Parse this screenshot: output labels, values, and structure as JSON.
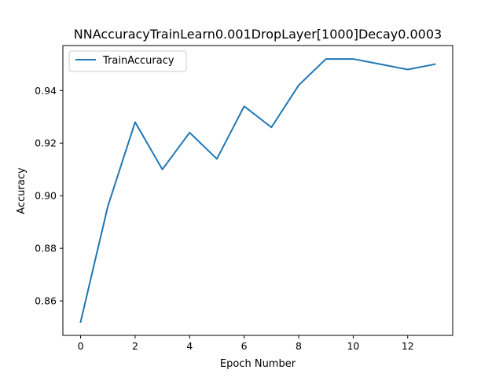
{
  "chart_data": {
    "type": "line",
    "title": "NNAccuracyTrainLearn0.001DropLayer[1000]Decay0.0003",
    "xlabel": "Epoch Number",
    "ylabel": "Accuracy",
    "xlim": [
      -0.65,
      13.65
    ],
    "ylim": [
      0.8469,
      0.9571
    ],
    "xticks": [
      0,
      2,
      4,
      6,
      8,
      10,
      12
    ],
    "yticks": [
      0.86,
      0.88,
      0.9,
      0.92,
      0.94
    ],
    "grid": false,
    "legend_position": "upper-left",
    "series": [
      {
        "name": "TrainAccuracy",
        "color": "#1f77b4",
        "x": [
          0,
          1,
          2,
          3,
          4,
          5,
          6,
          7,
          8,
          9,
          10,
          11,
          12,
          13
        ],
        "y": [
          0.852,
          0.896,
          0.928,
          0.91,
          0.924,
          0.914,
          0.934,
          0.926,
          0.942,
          0.952,
          0.952,
          0.95,
          0.948,
          0.95
        ]
      }
    ]
  }
}
